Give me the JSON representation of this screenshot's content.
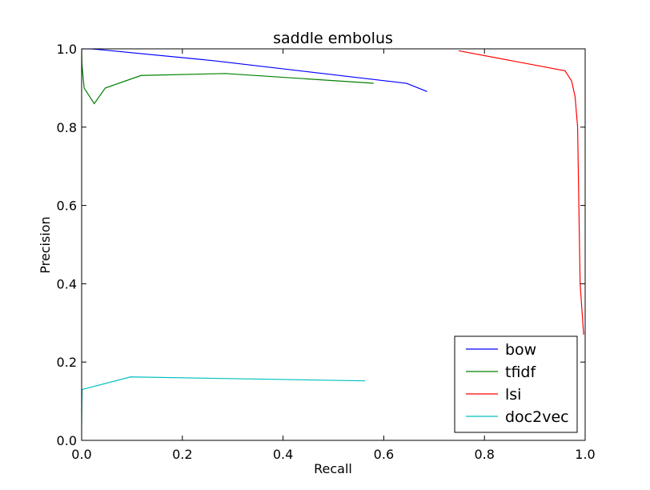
{
  "chart_data": {
    "type": "line",
    "title": "saddle embolus",
    "xlabel": "Recall",
    "ylabel": "Precision",
    "xlim": [
      0.0,
      1.0
    ],
    "ylim": [
      0.0,
      1.0
    ],
    "xticks": [
      "0.0",
      "0.2",
      "0.4",
      "0.6",
      "0.8",
      "1.0"
    ],
    "yticks": [
      "0.0",
      "0.2",
      "0.4",
      "0.6",
      "0.8",
      "1.0"
    ],
    "grid": false,
    "legend_position": "lower-right",
    "series": [
      {
        "name": "bow",
        "color": "#0000ff",
        "x": [
          0.0,
          0.003,
          0.005,
          0.02,
          0.26,
          0.645,
          0.686
        ],
        "y": [
          1.0,
          1.0,
          1.0,
          1.0,
          0.97,
          0.912,
          0.891
        ]
      },
      {
        "name": "tfidf",
        "color": "#008000",
        "x": [
          0.0,
          0.0005,
          0.005,
          0.025,
          0.047,
          0.118,
          0.285,
          0.58
        ],
        "y": [
          1.0,
          0.96,
          0.9,
          0.86,
          0.9,
          0.932,
          0.937,
          0.912
        ]
      },
      {
        "name": "lsi",
        "color": "#ff0000",
        "x": [
          0.749,
          0.96,
          0.973,
          0.98,
          0.985,
          0.99,
          0.997
        ],
        "y": [
          0.995,
          0.944,
          0.918,
          0.878,
          0.8,
          0.4,
          0.27
        ]
      },
      {
        "name": "doc2vec",
        "color": "#00bfbf",
        "x": [
          0.0,
          0.0005,
          0.001,
          0.097,
          0.563
        ],
        "y": [
          0.04,
          0.1,
          0.13,
          0.162,
          0.152
        ]
      }
    ]
  }
}
